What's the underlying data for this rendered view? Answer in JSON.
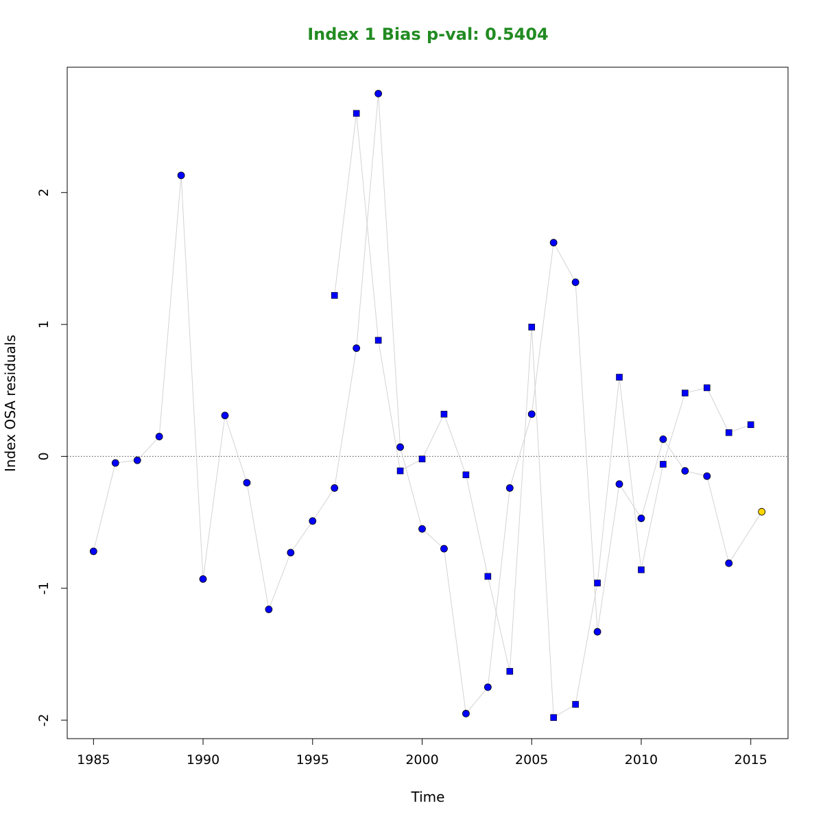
{
  "chart_data": {
    "type": "scatter",
    "title": "Index 1 Bias p-val: 0.5404",
    "title_color": "#228B22",
    "xlabel": "Time",
    "ylabel": "Index OSA residuals",
    "xlim": [
      1983.8,
      2016.7
    ],
    "ylim": [
      -2.14,
      2.95
    ],
    "x_ticks": [
      1985,
      1990,
      1995,
      2000,
      2005,
      2010,
      2015
    ],
    "y_ticks": [
      -2,
      -1,
      0,
      1,
      2
    ],
    "reference_line": 0,
    "line_color": "#d3d3d3",
    "point_color": "#0000ff",
    "highlight_color": "#ffd700",
    "series": [
      {
        "marker": "circle",
        "x": [
          1985,
          1986,
          1987,
          1988,
          1989,
          1990,
          1991,
          1992,
          1993,
          1994,
          1995,
          1996,
          1997,
          1998,
          1999,
          2000,
          2001,
          2002,
          2003,
          2004,
          2005,
          2006,
          2007,
          2008,
          2009,
          2010,
          2011,
          2012,
          2013,
          2014
        ],
        "values": [
          -0.72,
          -0.05,
          -0.03,
          0.15,
          2.13,
          -0.93,
          0.31,
          -0.2,
          -1.16,
          -0.73,
          -0.49,
          -0.24,
          0.82,
          2.75,
          0.07,
          -0.55,
          -0.7,
          -1.95,
          -1.75,
          -0.24,
          0.32,
          1.62,
          1.32,
          -1.33,
          -0.21,
          -0.47,
          0.13,
          -0.11,
          -0.15,
          -0.81
        ]
      },
      {
        "marker": "square",
        "x": [
          1996,
          1997,
          1998,
          1999,
          2000,
          2001,
          2002,
          2003,
          2004,
          2005,
          2006,
          2007,
          2008,
          2009,
          2010,
          2011,
          2012,
          2013,
          2014,
          2015
        ],
        "values": [
          1.22,
          2.6,
          0.88,
          -0.11,
          -0.02,
          0.32,
          -0.14,
          -0.91,
          -1.63,
          0.98,
          -1.98,
          -1.88,
          -0.96,
          0.6,
          -0.86,
          -0.06,
          0.48,
          0.52,
          0.18,
          0.24
        ]
      }
    ],
    "highlight_point": {
      "marker": "circle",
      "x": 2015.5,
      "value": -0.42,
      "connect_from": {
        "x": 2014,
        "value": -0.81
      }
    }
  }
}
